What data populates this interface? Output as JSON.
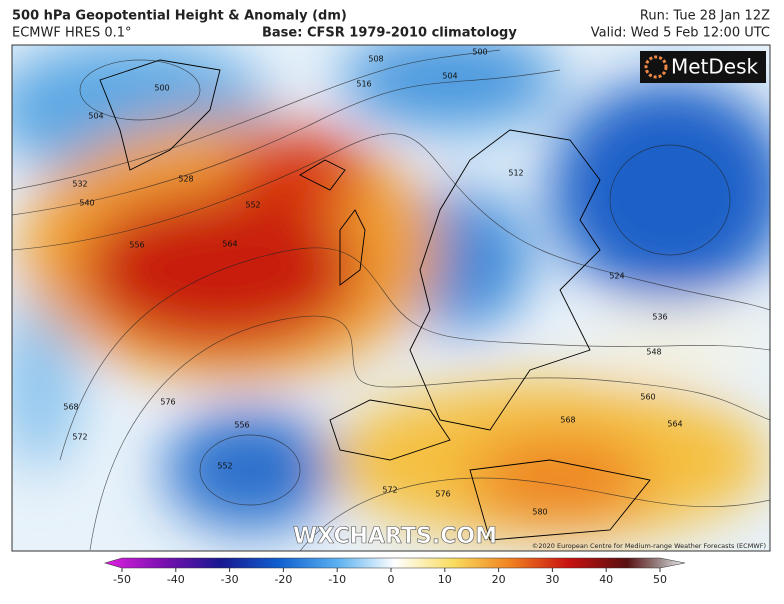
{
  "header": {
    "title": "500 hPa Geopotential Height & Anomaly (dm)",
    "model": "ECMWF HRES 0.1°",
    "base": "Base: CFSR 1979-2010 climatology",
    "run": "Run: Tue 28 Jan 12Z",
    "valid": "Valid: Wed 5 Feb 12:00 UTC"
  },
  "logo": "MetDesk",
  "watermark": "WXCHARTS.COM",
  "copyright": "©2020 European Centre for Medium-range Weather Forecasts (ECMWF)",
  "contour_labels": [
    "508",
    "516",
    "500",
    "504",
    "504",
    "500",
    "532",
    "528",
    "540",
    "556",
    "564",
    "552",
    "512",
    "524",
    "536",
    "548",
    "560",
    "564",
    "568",
    "572",
    "576",
    "556",
    "552",
    "572",
    "576",
    "580",
    "568"
  ],
  "colorbar": {
    "lim": [
      -50,
      50
    ],
    "ticks": [
      -50,
      -40,
      -30,
      -20,
      -10,
      0,
      10,
      20,
      30,
      40,
      50
    ]
  }
}
